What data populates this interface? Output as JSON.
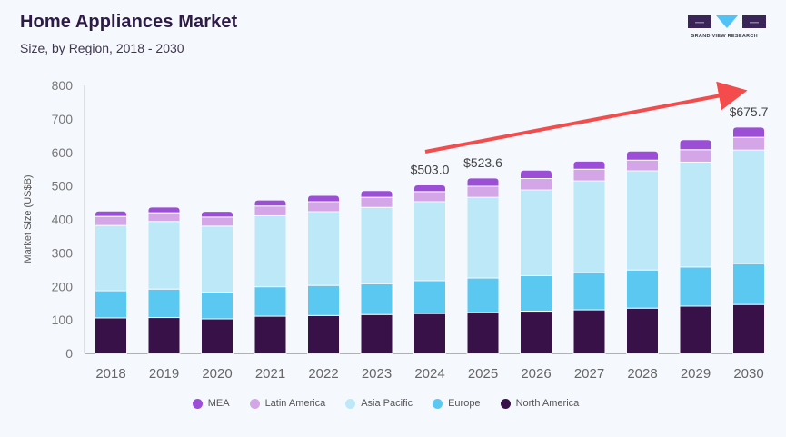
{
  "header": {
    "title": "Home Appliances Market",
    "subtitle": "Size, by Region, 2018 - 2030"
  },
  "logo": {
    "text": "GRAND VIEW RESEARCH",
    "colors": {
      "dark": "#3b2458",
      "accent": "#4fc3f7"
    }
  },
  "chart_data": {
    "type": "bar",
    "stacked": true,
    "title": "Home Appliances Market",
    "subtitle": "Size, by Region, 2018 - 2030",
    "xlabel": "",
    "ylabel": "Market Size (US$B)",
    "ylim": [
      0,
      800
    ],
    "yticks": [
      0,
      100,
      200,
      300,
      400,
      500,
      600,
      700,
      800
    ],
    "grid": false,
    "legend_position": "bottom",
    "categories": [
      "2018",
      "2019",
      "2020",
      "2021",
      "2022",
      "2023",
      "2024",
      "2025",
      "2026",
      "2027",
      "2028",
      "2029",
      "2030"
    ],
    "series": [
      {
        "name": "North America",
        "color": "#371147",
        "values": [
          106,
          107,
          103,
          111,
          113,
          116,
          119,
          122,
          126,
          130,
          135,
          141,
          146
        ]
      },
      {
        "name": "Europe",
        "color": "#5bc8f2",
        "values": [
          81,
          85,
          80,
          88,
          90,
          92,
          98,
          103,
          106,
          111,
          114,
          117,
          122
        ]
      },
      {
        "name": "Asia Pacific",
        "color": "#bde8f8",
        "values": [
          195,
          202,
          197,
          212,
          220,
          228,
          236,
          241,
          256,
          274,
          296,
          313,
          339
        ]
      },
      {
        "name": "Latin America",
        "color": "#d4a6e8",
        "values": [
          27,
          26,
          27,
          29,
          30,
          30,
          30,
          33,
          34,
          35,
          32,
          37,
          38
        ]
      },
      {
        "name": "MEA",
        "color": "#9c4fd6",
        "values": [
          16,
          17,
          17,
          18,
          19,
          20,
          20,
          24.6,
          25,
          24,
          27,
          30,
          30.7
        ]
      }
    ],
    "totals": [
      425,
      437,
      424,
      458,
      472,
      486,
      503.0,
      523.6,
      547,
      574,
      604,
      638,
      675.7
    ],
    "annotations": [
      {
        "category": "2024",
        "label": "$503.0"
      },
      {
        "category": "2025",
        "label": "$523.6"
      },
      {
        "category": "2030",
        "label": "$675.7"
      }
    ],
    "trend_arrow": {
      "from": "2024",
      "to": "2030",
      "color": "#f44c4c"
    }
  },
  "legend": {
    "order": [
      "MEA",
      "Latin America",
      "Asia Pacific",
      "Europe",
      "North America"
    ]
  }
}
